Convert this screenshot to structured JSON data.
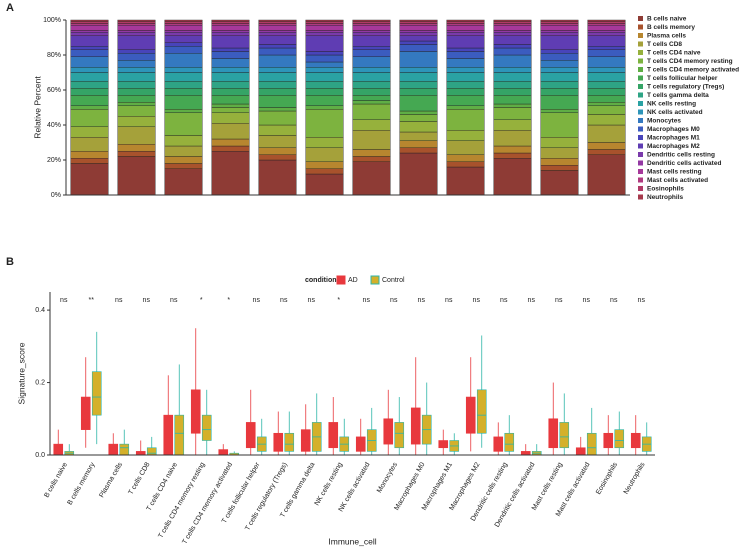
{
  "chart_data": [
    {
      "type": "bar",
      "stacked": true,
      "panel": "A",
      "ylabel": "Relative Percent",
      "categories": [
        null,
        null,
        null,
        null,
        null,
        null,
        null,
        null,
        null,
        null,
        null,
        null
      ],
      "ylim": [
        0,
        100
      ],
      "yticks": [
        {
          "value": 0,
          "label": "0%"
        },
        {
          "value": 20,
          "label": "20%"
        },
        {
          "value": 40,
          "label": "40%"
        },
        {
          "value": 60,
          "label": "60%"
        },
        {
          "value": 80,
          "label": "80%"
        },
        {
          "value": 100,
          "label": "100%"
        }
      ],
      "legend": "right",
      "series": [
        {
          "name": "B cells naive",
          "color": "#8e3b35",
          "values": [
            18,
            22,
            15,
            25,
            20,
            12,
            19,
            24,
            16,
            21,
            14,
            23
          ]
        },
        {
          "name": "B cells memory",
          "color": "#a8522c",
          "values": [
            3,
            3,
            3,
            3,
            3,
            3,
            3,
            3,
            3,
            3,
            3,
            3
          ]
        },
        {
          "name": "Plasma cells",
          "color": "#b7862f",
          "values": [
            4,
            4,
            4,
            4,
            4,
            4,
            4,
            4,
            4,
            4,
            4,
            4
          ]
        },
        {
          "name": "T cells CD8",
          "color": "#a5a13a",
          "values": [
            8,
            10,
            6,
            9,
            7,
            8,
            11,
            5,
            8,
            9,
            6,
            10
          ]
        },
        {
          "name": "T cells CD4 naive",
          "color": "#96b13c",
          "values": [
            6,
            6,
            6,
            6,
            6,
            6,
            6,
            6,
            6,
            6,
            6,
            6
          ]
        },
        {
          "name": "T cells CD4 memory resting",
          "color": "#7db33f",
          "values": [
            10,
            6,
            13,
            3,
            8,
            16,
            9,
            4,
            12,
            7,
            14,
            5
          ]
        },
        {
          "name": "T cells CD4 memory activated",
          "color": "#5fae45",
          "values": [
            2,
            2,
            2,
            2,
            2,
            2,
            2,
            2,
            2,
            2,
            2,
            2
          ]
        },
        {
          "name": "T cells follicular helper",
          "color": "#45a852",
          "values": [
            6,
            4,
            8,
            5,
            7,
            6,
            3,
            9,
            6,
            5,
            8,
            4
          ]
        },
        {
          "name": "T cells regulatory (Tregs)",
          "color": "#35a466",
          "values": [
            4,
            4,
            4,
            4,
            4,
            4,
            4,
            4,
            4,
            4,
            4,
            4
          ]
        },
        {
          "name": "T cells gamma delta",
          "color": "#2ea485",
          "values": [
            4,
            4,
            4,
            4,
            4,
            4,
            4,
            4,
            4,
            4,
            4,
            4
          ]
        },
        {
          "name": "NK cells resting",
          "color": "#2aa2a3",
          "values": [
            5,
            5,
            5,
            5,
            5,
            5,
            5,
            5,
            5,
            5,
            5,
            5
          ]
        },
        {
          "name": "NK cells activated",
          "color": "#2d95b9",
          "values": [
            3,
            3,
            3,
            3,
            3,
            3,
            3,
            3,
            3,
            3,
            3,
            3
          ]
        },
        {
          "name": "Monocytes",
          "color": "#3479c0",
          "values": [
            6,
            4,
            8,
            5,
            7,
            3,
            6,
            9,
            5,
            7,
            4,
            6
          ]
        },
        {
          "name": "Macrophages M0",
          "color": "#3b5cbf",
          "values": [
            4,
            4,
            4,
            4,
            4,
            4,
            4,
            4,
            4,
            4,
            4,
            4
          ]
        },
        {
          "name": "Macrophages M1",
          "color": "#4844ba",
          "values": [
            2,
            2,
            2,
            2,
            2,
            2,
            2,
            2,
            2,
            2,
            2,
            2
          ]
        },
        {
          "name": "Macrophages M2",
          "color": "#5f3db3",
          "values": [
            6,
            8,
            4,
            7,
            5,
            9,
            6,
            3,
            7,
            5,
            8,
            6
          ]
        },
        {
          "name": "Dendritic cells resting",
          "color": "#7a3aab",
          "values": [
            2,
            2,
            2,
            2,
            2,
            2,
            2,
            2,
            2,
            2,
            2,
            2
          ]
        },
        {
          "name": "Dendritic cells activated",
          "color": "#9338a3",
          "values": [
            1,
            1,
            1,
            1,
            1,
            1,
            1,
            1,
            1,
            1,
            1,
            1
          ]
        },
        {
          "name": "Mast cells resting",
          "color": "#a6389a",
          "values": [
            3,
            3,
            3,
            3,
            3,
            3,
            3,
            3,
            3,
            3,
            3,
            3
          ]
        },
        {
          "name": "Mast cells activated",
          "color": "#b0397f",
          "values": [
            1,
            1,
            1,
            1,
            1,
            1,
            1,
            1,
            1,
            1,
            1,
            1
          ]
        },
        {
          "name": "Eosinophils",
          "color": "#b13a66",
          "values": [
            1,
            1,
            1,
            1,
            1,
            1,
            1,
            1,
            1,
            1,
            1,
            1
          ]
        },
        {
          "name": "Neutrophils",
          "color": "#a63a4c",
          "values": [
            1,
            1,
            1,
            1,
            1,
            1,
            1,
            1,
            1,
            1,
            1,
            1
          ]
        }
      ]
    },
    {
      "type": "box",
      "panel": "B",
      "xlabel": "Immune_cell",
      "ylabel": "Signature_score",
      "legend_title": "condition",
      "legend": "top",
      "categories": [
        "B cells naive",
        "B cells memory",
        "Plasma cells",
        "T cells CD8",
        "T cells CD4 naive",
        "T cells CD4 memory resting",
        "T cells CD4 memory activated",
        "T cells follicular helper",
        "T cells regulatory (Tregs)",
        "T cells gamma delta",
        "NK cells resting",
        "NK cells activated",
        "Monocytes",
        "Macrophages M0",
        "Macrophages M1",
        "Macrophages M2",
        "Dendritic cells resting",
        "Dendritic cells activated",
        "Mast cells resting",
        "Mast cells activated",
        "Eosinophils",
        "Neutrophils"
      ],
      "significance": [
        "ns",
        "**",
        "ns",
        "ns",
        "ns",
        "*",
        "*",
        "ns",
        "ns",
        "ns",
        "*",
        "ns",
        "ns",
        "ns",
        "ns",
        "ns",
        "ns",
        "ns",
        "ns",
        "ns",
        "ns",
        "ns"
      ],
      "ylim": [
        0,
        0.45
      ],
      "yticks": [
        {
          "value": 0,
          "label": "0.0"
        },
        {
          "value": 0.2,
          "label": "0.2"
        },
        {
          "value": 0.4,
          "label": "0.4"
        }
      ],
      "series": [
        {
          "name": "AD",
          "color": "#e8383d",
          "fill": "#e8383d",
          "min": [
            0,
            0.02,
            0,
            0,
            0,
            0,
            0,
            0,
            0,
            0,
            0,
            0,
            0,
            0,
            0,
            0.01,
            0,
            0,
            0,
            0,
            0,
            0
          ],
          "q1": [
            0,
            0.07,
            0,
            0,
            0,
            0.06,
            0,
            0.02,
            0.01,
            0.01,
            0.02,
            0.01,
            0.03,
            0.03,
            0.02,
            0.06,
            0.01,
            0,
            0.02,
            0,
            0.02,
            0.02
          ],
          "median": [
            0.01,
            0.1,
            0.02,
            0,
            0.05,
            0.1,
            0.005,
            0.05,
            0.03,
            0.04,
            0.05,
            0.03,
            0.07,
            0.08,
            0.03,
            0.1,
            0.02,
            0.005,
            0.06,
            0.01,
            0.04,
            0.04
          ],
          "q3": [
            0.03,
            0.16,
            0.03,
            0.01,
            0.11,
            0.18,
            0.015,
            0.09,
            0.06,
            0.07,
            0.09,
            0.05,
            0.1,
            0.13,
            0.04,
            0.16,
            0.05,
            0.01,
            0.1,
            0.02,
            0.06,
            0.06
          ],
          "max": [
            0.07,
            0.27,
            0.06,
            0.04,
            0.22,
            0.35,
            0.03,
            0.18,
            0.12,
            0.14,
            0.16,
            0.1,
            0.18,
            0.27,
            0.07,
            0.27,
            0.09,
            0.03,
            0.2,
            0.05,
            0.11,
            0.11
          ]
        },
        {
          "name": "Control",
          "color": "#2db5a8",
          "fill": "#d4b02a",
          "min": [
            0,
            0.03,
            0,
            0,
            0,
            0,
            0,
            0,
            0,
            0,
            0,
            0,
            0,
            0,
            0,
            0.02,
            0,
            0,
            0,
            0,
            0,
            0
          ],
          "q1": [
            0,
            0.11,
            0,
            0,
            0,
            0.04,
            0,
            0.01,
            0.01,
            0.01,
            0.01,
            0.01,
            0.02,
            0.03,
            0.01,
            0.06,
            0.01,
            0,
            0.02,
            0,
            0.02,
            0.01
          ],
          "median": [
            0.005,
            0.16,
            0.02,
            0.005,
            0.06,
            0.07,
            0,
            0.03,
            0.03,
            0.05,
            0.03,
            0.04,
            0.06,
            0.07,
            0.025,
            0.11,
            0.03,
            0.005,
            0.05,
            0.02,
            0.04,
            0.03
          ],
          "q3": [
            0.01,
            0.23,
            0.03,
            0.02,
            0.11,
            0.11,
            0.005,
            0.05,
            0.06,
            0.09,
            0.05,
            0.07,
            0.09,
            0.11,
            0.04,
            0.18,
            0.06,
            0.01,
            0.09,
            0.06,
            0.07,
            0.05
          ],
          "max": [
            0.03,
            0.34,
            0.07,
            0.05,
            0.25,
            0.18,
            0.01,
            0.1,
            0.12,
            0.17,
            0.1,
            0.13,
            0.16,
            0.2,
            0.06,
            0.33,
            0.11,
            0.03,
            0.17,
            0.13,
            0.12,
            0.09
          ]
        }
      ]
    }
  ]
}
